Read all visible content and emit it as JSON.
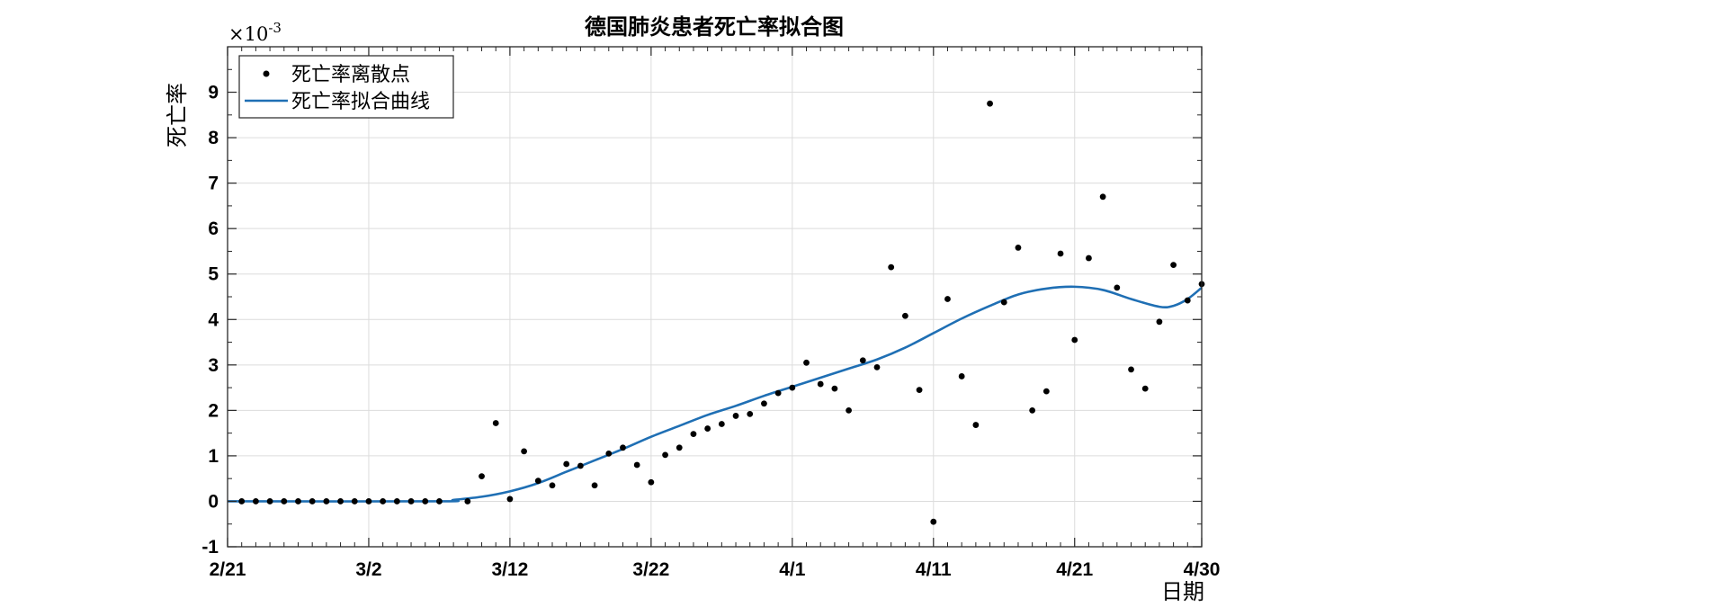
{
  "chart_data": {
    "type": "scatter+line",
    "title": "德国肺炎患者死亡率拟合图",
    "xlabel": "日期",
    "ylabel": "死亡率",
    "y_exponent_label": "×10",
    "y_exponent_value": "-3",
    "xlim": [
      0,
      69
    ],
    "ylim": [
      -1,
      10
    ],
    "x_ticks": [
      {
        "value": 0,
        "label": "2/21"
      },
      {
        "value": 10,
        "label": "3/2"
      },
      {
        "value": 20,
        "label": "3/12"
      },
      {
        "value": 30,
        "label": "3/22"
      },
      {
        "value": 40,
        "label": "4/1"
      },
      {
        "value": 50,
        "label": "4/11"
      },
      {
        "value": 60,
        "label": "4/21"
      },
      {
        "value": 69,
        "label": "4/30"
      }
    ],
    "y_ticks": [
      -1,
      0,
      1,
      2,
      3,
      4,
      5,
      6,
      7,
      8,
      9
    ],
    "grid": true,
    "legend": {
      "position": "top-left",
      "entries": [
        {
          "label": "死亡率离散点",
          "marker": "dot",
          "color": "#000000"
        },
        {
          "label": "死亡率拟合曲线",
          "marker": "line",
          "color": "#1f6fb4"
        }
      ]
    },
    "series": [
      {
        "name": "死亡率离散点",
        "kind": "scatter",
        "color": "#000000",
        "points": [
          [
            1,
            0
          ],
          [
            2,
            0
          ],
          [
            3,
            0
          ],
          [
            4,
            0
          ],
          [
            5,
            0
          ],
          [
            6,
            0
          ],
          [
            7,
            0
          ],
          [
            8,
            0
          ],
          [
            9,
            0
          ],
          [
            10,
            0
          ],
          [
            11,
            0
          ],
          [
            12,
            0
          ],
          [
            13,
            0
          ],
          [
            14,
            0
          ],
          [
            15,
            0
          ],
          [
            17,
            0
          ],
          [
            18,
            0.55
          ],
          [
            19,
            1.72
          ],
          [
            20,
            0.05
          ],
          [
            21,
            1.1
          ],
          [
            22,
            0.45
          ],
          [
            23,
            0.35
          ],
          [
            24,
            0.82
          ],
          [
            25,
            0.78
          ],
          [
            26,
            0.35
          ],
          [
            27,
            1.05
          ],
          [
            28,
            1.18
          ],
          [
            29,
            0.8
          ],
          [
            30,
            0.42
          ],
          [
            31,
            1.02
          ],
          [
            32,
            1.18
          ],
          [
            33,
            1.48
          ],
          [
            34,
            1.6
          ],
          [
            35,
            1.7
          ],
          [
            36,
            1.88
          ],
          [
            37,
            1.92
          ],
          [
            38,
            2.15
          ],
          [
            39,
            2.38
          ],
          [
            40,
            2.5
          ],
          [
            41,
            3.05
          ],
          [
            42,
            2.58
          ],
          [
            43,
            2.48
          ],
          [
            44,
            2.0
          ],
          [
            45,
            3.1
          ],
          [
            46,
            2.95
          ],
          [
            47,
            5.15
          ],
          [
            48,
            4.08
          ],
          [
            49,
            2.45
          ],
          [
            50,
            -0.45
          ],
          [
            51,
            4.45
          ],
          [
            52,
            2.75
          ],
          [
            53,
            1.68
          ],
          [
            54,
            8.75
          ],
          [
            55,
            4.38
          ],
          [
            56,
            5.58
          ],
          [
            57,
            2.0
          ],
          [
            58,
            2.42
          ],
          [
            59,
            5.45
          ],
          [
            60,
            3.55
          ],
          [
            61,
            5.35
          ],
          [
            62,
            6.7
          ],
          [
            63,
            4.7
          ],
          [
            64,
            2.9
          ],
          [
            65,
            2.48
          ],
          [
            66,
            3.95
          ],
          [
            67,
            5.2
          ],
          [
            68,
            4.42
          ],
          [
            69,
            4.78
          ]
        ]
      },
      {
        "name": "死亡率拟合曲线",
        "kind": "line",
        "color": "#1f6fb4",
        "points": [
          [
            0,
            0
          ],
          [
            15,
            0
          ],
          [
            16,
            0.03
          ],
          [
            18,
            0.1
          ],
          [
            20,
            0.22
          ],
          [
            22,
            0.4
          ],
          [
            24,
            0.65
          ],
          [
            26,
            0.9
          ],
          [
            28,
            1.15
          ],
          [
            30,
            1.42
          ],
          [
            32,
            1.66
          ],
          [
            34,
            1.9
          ],
          [
            36,
            2.1
          ],
          [
            38,
            2.32
          ],
          [
            40,
            2.52
          ],
          [
            42,
            2.72
          ],
          [
            44,
            2.92
          ],
          [
            46,
            3.12
          ],
          [
            48,
            3.38
          ],
          [
            50,
            3.7
          ],
          [
            52,
            4.02
          ],
          [
            54,
            4.3
          ],
          [
            56,
            4.55
          ],
          [
            58,
            4.68
          ],
          [
            60,
            4.72
          ],
          [
            62,
            4.65
          ],
          [
            64,
            4.45
          ],
          [
            66,
            4.28
          ],
          [
            67,
            4.3
          ],
          [
            68,
            4.45
          ],
          [
            69,
            4.7
          ]
        ]
      }
    ]
  }
}
